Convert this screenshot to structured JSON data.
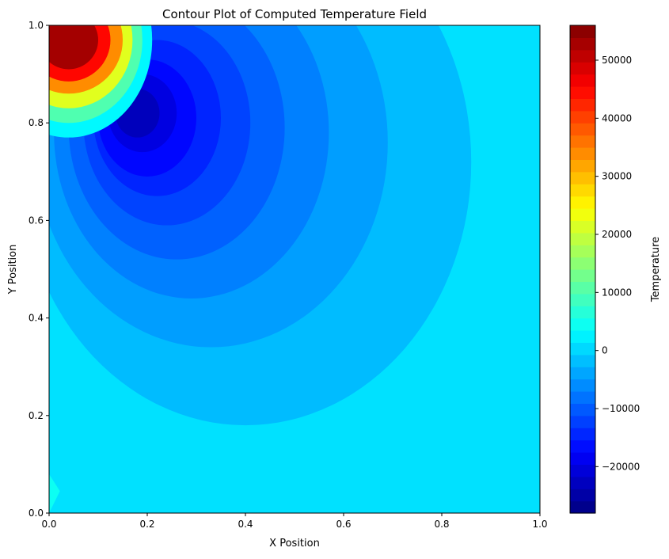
{
  "chart_data": {
    "type": "heatmap",
    "title": "Contour Plot of Computed Temperature Field",
    "xlabel": "X Position",
    "ylabel": "Y Position",
    "xlim": [
      0,
      1
    ],
    "ylim": [
      0,
      1
    ],
    "x_ticks": [
      "0.0",
      "0.2",
      "0.4",
      "0.6",
      "0.8",
      "1.0"
    ],
    "y_ticks": [
      "0.0",
      "0.2",
      "0.4",
      "0.6",
      "0.8",
      "1.0"
    ],
    "colorbar": {
      "label": "Temperature",
      "min": -28000,
      "max": 56000,
      "tick_values": [
        -20000,
        -10000,
        0,
        10000,
        20000,
        30000,
        40000,
        50000
      ],
      "tick_labels": [
        "−20000",
        "−10000",
        "0",
        "10000",
        "20000",
        "30000",
        "40000",
        "50000"
      ],
      "colormap": "jet"
    },
    "field": {
      "background_value": 1000,
      "hot_spot": {
        "x": 0.04,
        "y": 0.97,
        "value": 56000
      },
      "cold_spot": {
        "x": 0.18,
        "y": 0.82,
        "value": -26000
      },
      "levels": [
        {
          "value": -2000,
          "cx": 0.4,
          "cy": 0.72,
          "rx": 0.46,
          "ry": 0.54
        },
        {
          "value": -4500,
          "cx": 0.33,
          "cy": 0.76,
          "rx": 0.36,
          "ry": 0.42
        },
        {
          "value": -7000,
          "cx": 0.29,
          "cy": 0.78,
          "rx": 0.28,
          "ry": 0.34
        },
        {
          "value": -9500,
          "cx": 0.26,
          "cy": 0.79,
          "rx": 0.22,
          "ry": 0.27
        },
        {
          "value": -12000,
          "cx": 0.24,
          "cy": 0.8,
          "rx": 0.17,
          "ry": 0.21
        },
        {
          "value": -14500,
          "cx": 0.22,
          "cy": 0.81,
          "rx": 0.13,
          "ry": 0.16
        },
        {
          "value": -17000,
          "cx": 0.2,
          "cy": 0.81,
          "rx": 0.1,
          "ry": 0.12
        },
        {
          "value": -20000,
          "cx": 0.19,
          "cy": 0.82,
          "rx": 0.07,
          "ry": 0.08
        },
        {
          "value": -23000,
          "cx": 0.18,
          "cy": 0.82,
          "rx": 0.045,
          "ry": 0.05
        }
      ],
      "hot_levels": [
        {
          "value": 3000,
          "rx": 0.17,
          "ry": 0.2
        },
        {
          "value": 10000,
          "rx": 0.15,
          "ry": 0.17
        },
        {
          "value": 22000,
          "rx": 0.13,
          "ry": 0.14
        },
        {
          "value": 34000,
          "rx": 0.11,
          "ry": 0.11
        },
        {
          "value": 45000,
          "rx": 0.085,
          "ry": 0.085
        },
        {
          "value": 53000,
          "rx": 0.06,
          "ry": 0.06
        }
      ]
    }
  }
}
